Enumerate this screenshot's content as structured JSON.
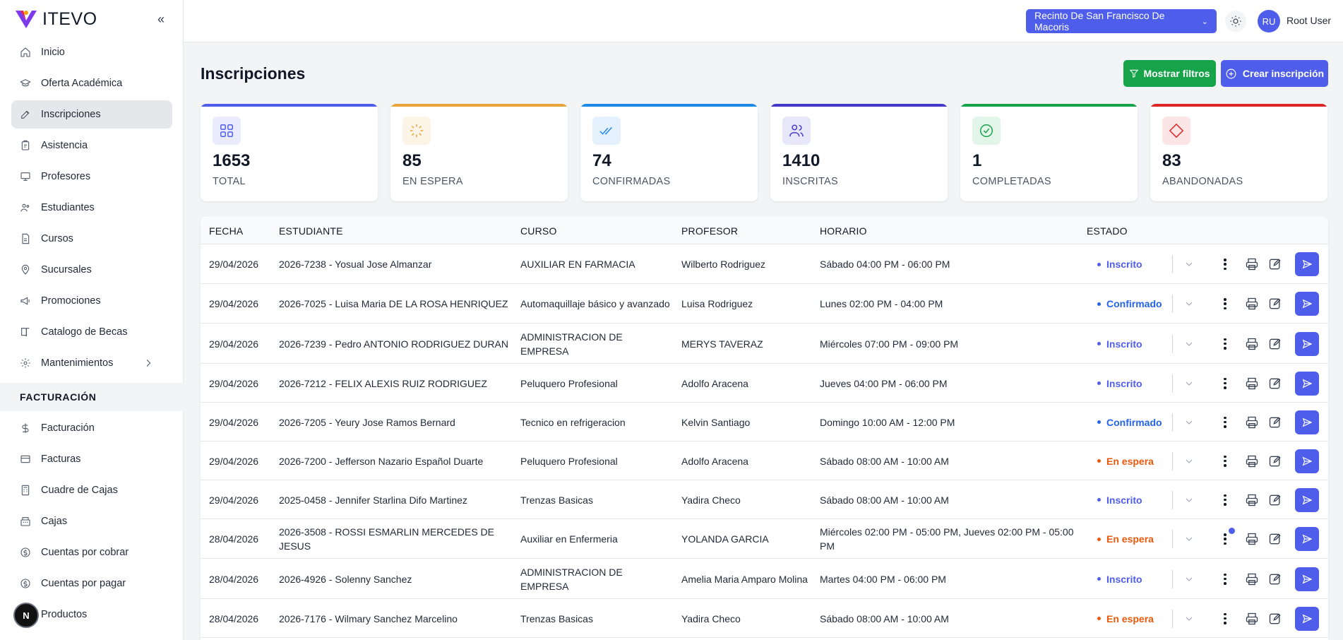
{
  "brand": {
    "name": "ITEVO"
  },
  "sidebar": {
    "items": [
      {
        "label": "Inicio",
        "icon": "home-icon"
      },
      {
        "label": "Oferta Académica",
        "icon": "graduation-cap-icon"
      },
      {
        "label": "Inscripciones",
        "icon": "edit-icon",
        "active": true
      },
      {
        "label": "Asistencia",
        "icon": "clipboard-icon"
      },
      {
        "label": "Profesores",
        "icon": "presentation-icon"
      },
      {
        "label": "Estudiantes",
        "icon": "users-icon"
      },
      {
        "label": "Cursos",
        "icon": "file-icon"
      },
      {
        "label": "Sucursales",
        "icon": "map-pin-icon"
      },
      {
        "label": "Promociones",
        "icon": "megaphone-icon"
      },
      {
        "label": "Catalogo de Becas",
        "icon": "book-icon"
      },
      {
        "label": "Mantenimientos",
        "icon": "gear-icon"
      }
    ],
    "section_billing": "FACTURACIÓN",
    "billing_items": [
      {
        "label": "Facturación",
        "icon": "dollar-icon"
      },
      {
        "label": "Facturas",
        "icon": "credit-card-icon"
      },
      {
        "label": "Cuadre de Cajas",
        "icon": "calculator-icon"
      },
      {
        "label": "Cajas",
        "icon": "register-icon"
      },
      {
        "label": "Cuentas por cobrar",
        "icon": "dollar-circle-icon"
      },
      {
        "label": "Cuentas por pagar",
        "icon": "dollar-circle-icon"
      },
      {
        "label": "Productos",
        "icon": "box-icon"
      }
    ],
    "dev_badge": "N"
  },
  "topbar": {
    "campus": "Recinto De San Francisco De Macoris",
    "user_initials": "RU",
    "user_name": "Root User"
  },
  "page": {
    "title": "Inscripciones",
    "filter_button": "Mostrar filtros",
    "create_button": "Crear inscripción"
  },
  "colors": {
    "primary": "#4f5eea",
    "success": "#16a34a",
    "waiting": "#ea580c",
    "confirmed": "#2563eb"
  },
  "stats": [
    {
      "value": "1653",
      "label": "TOTAL",
      "color": "#4f5eea",
      "icon": "grid-icon"
    },
    {
      "value": "85",
      "label": "EN ESPERA",
      "color": "#e8a33d",
      "icon": "loader-icon"
    },
    {
      "value": "74",
      "label": "CONFIRMADAS",
      "color": "#1e88e5",
      "icon": "check-double-icon"
    },
    {
      "value": "1410",
      "label": "INSCRITAS",
      "color": "#4338ca",
      "icon": "user-group-icon"
    },
    {
      "value": "1",
      "label": "COMPLETADAS",
      "color": "#16a34a",
      "icon": "check-circle-icon"
    },
    {
      "value": "83",
      "label": "ABANDONADAS",
      "color": "#dc2626",
      "icon": "diamond-icon"
    }
  ],
  "table": {
    "headers": [
      "FECHA",
      "ESTUDIANTE",
      "CURSO",
      "PROFESOR",
      "HORARIO",
      "ESTADO"
    ],
    "rows": [
      {
        "fecha": "29/04/2026",
        "estudiante": "2026-7238 - Yosual Jose Almanzar",
        "curso": "AUXILIAR EN FARMACIA",
        "profesor": "Wilberto Rodriguez",
        "horario": "Sábado 04:00 PM - 06:00 PM",
        "estado": "Inscrito",
        "estado_type": "inscrito"
      },
      {
        "fecha": "29/04/2026",
        "estudiante": "2026-7025 - Luisa Maria DE LA ROSA HENRIQUEZ",
        "curso": "Automaquillaje básico y avanzado",
        "profesor": "Luisa Rodriguez",
        "horario": "Lunes 02:00 PM - 04:00 PM",
        "estado": "Confirmado",
        "estado_type": "confirmado"
      },
      {
        "fecha": "29/04/2026",
        "estudiante": "2026-7239 - Pedro ANTONIO RODRIGUEZ DURAN",
        "curso": "ADMINISTRACION DE EMPRESA",
        "profesor": "MERYS TAVERAZ",
        "horario": "Miércoles 07:00 PM - 09:00 PM",
        "estado": "Inscrito",
        "estado_type": "inscrito"
      },
      {
        "fecha": "29/04/2026",
        "estudiante": "2026-7212 - FELIX ALEXIS RUIZ RODRIGUEZ",
        "curso": "Peluquero Profesional",
        "profesor": "Adolfo Aracena",
        "horario": "Jueves 04:00 PM - 06:00 PM",
        "estado": "Inscrito",
        "estado_type": "inscrito"
      },
      {
        "fecha": "29/04/2026",
        "estudiante": "2026-7205 - Yeury Jose Ramos Bernard",
        "curso": "Tecnico en refrigeracion",
        "profesor": "Kelvin Santiago",
        "horario": "Domingo 10:00 AM - 12:00 PM",
        "estado": "Confirmado",
        "estado_type": "confirmado"
      },
      {
        "fecha": "29/04/2026",
        "estudiante": "2026-7200 - Jefferson Nazario Español Duarte",
        "curso": "Peluquero Profesional",
        "profesor": "Adolfo Aracena",
        "horario": "Sábado 08:00 AM - 10:00 AM",
        "estado": "En espera",
        "estado_type": "espera"
      },
      {
        "fecha": "29/04/2026",
        "estudiante": "2025-0458 - Jennifer Starlina Difo Martinez",
        "curso": "Trenzas Basicas",
        "profesor": "Yadira Checo",
        "horario": "Sábado 08:00 AM - 10:00 AM",
        "estado": "Inscrito",
        "estado_type": "inscrito"
      },
      {
        "fecha": "28/04/2026",
        "estudiante": "2026-3508 - ROSSI ESMARLIN MERCEDES DE JESUS",
        "curso": "Auxiliar en Enfermeria",
        "profesor": "YOLANDA GARCIA",
        "horario": "Miércoles 02:00 PM - 05:00 PM, Jueves 02:00 PM - 05:00 PM",
        "estado": "En espera",
        "estado_type": "espera",
        "notif": true
      },
      {
        "fecha": "28/04/2026",
        "estudiante": "2026-4926 - Solenny Sanchez",
        "curso": "ADMINISTRACION DE EMPRESA",
        "profesor": "Amelia Maria Amparo Molina",
        "horario": "Martes 04:00 PM - 06:00 PM",
        "estado": "Inscrito",
        "estado_type": "inscrito"
      },
      {
        "fecha": "28/04/2026",
        "estudiante": "2026-7176 - Wilmary Sanchez Marcelino",
        "curso": "Trenzas Basicas",
        "profesor": "Yadira Checo",
        "horario": "Sábado 08:00 AM - 10:00 AM",
        "estado": "En espera",
        "estado_type": "espera"
      }
    ]
  }
}
